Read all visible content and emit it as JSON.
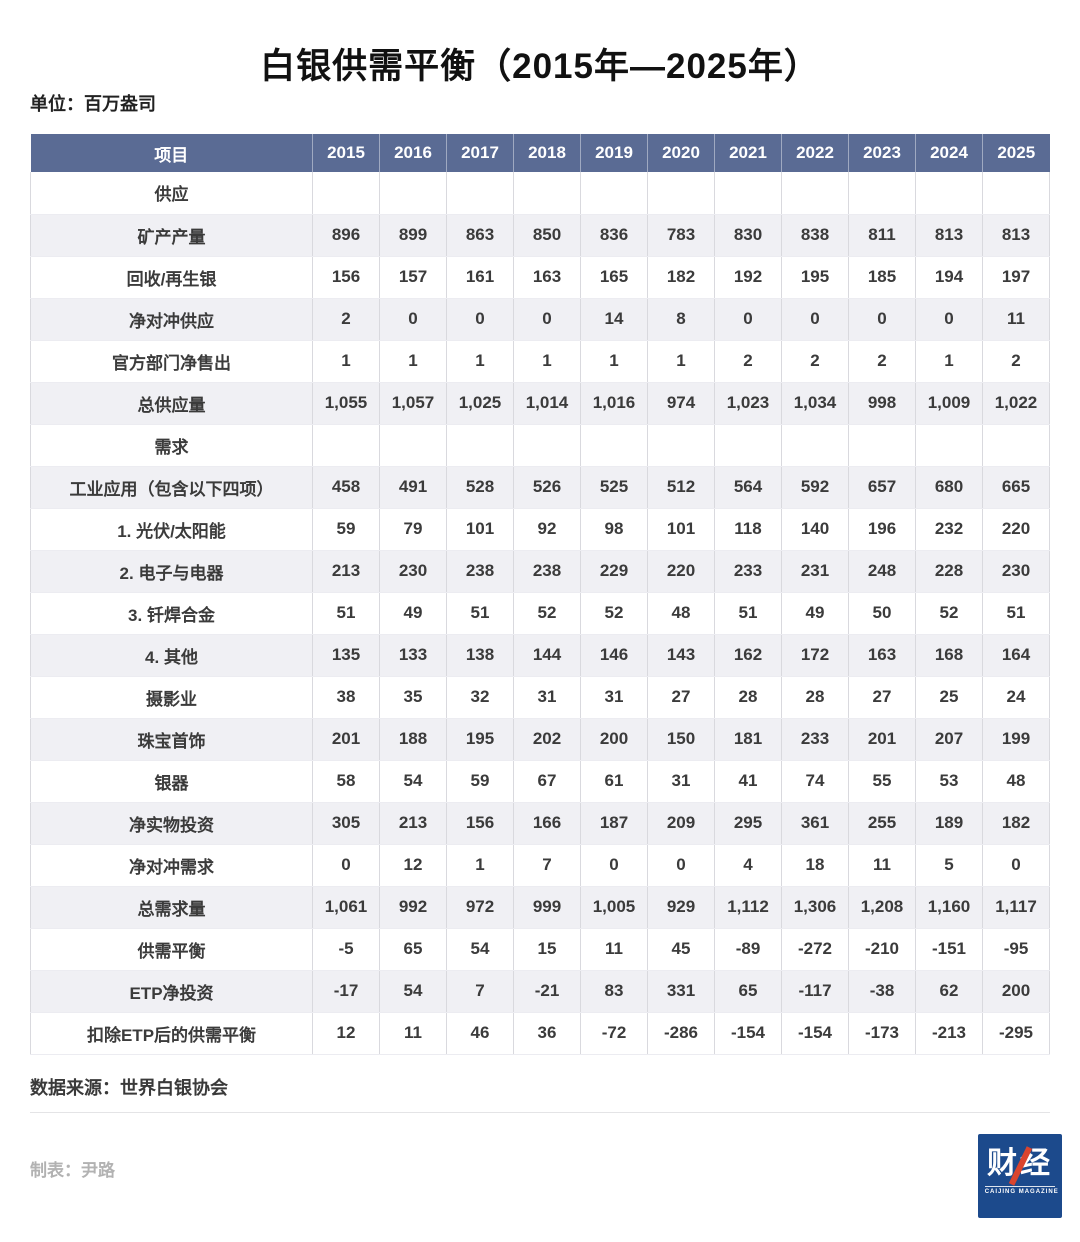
{
  "title": "白银供需平衡（2015年—2025年）",
  "unit_label": "单位：百万盎司",
  "chart_data": {
    "type": "table",
    "title": "白银供需平衡（2015年—2025年）",
    "unit": "百万盎司",
    "columns": [
      "项目",
      "2015",
      "2016",
      "2017",
      "2018",
      "2019",
      "2020",
      "2021",
      "2022",
      "2023",
      "2024",
      "2025"
    ],
    "rows": [
      {
        "label": "供应",
        "section": true,
        "values": [
          "",
          "",
          "",
          "",
          "",
          "",
          "",
          "",
          "",
          "",
          ""
        ]
      },
      {
        "label": "矿产产量",
        "section": false,
        "values": [
          "896",
          "899",
          "863",
          "850",
          "836",
          "783",
          "830",
          "838",
          "811",
          "813",
          "813"
        ]
      },
      {
        "label": "回收/再生银",
        "section": false,
        "values": [
          "156",
          "157",
          "161",
          "163",
          "165",
          "182",
          "192",
          "195",
          "185",
          "194",
          "197"
        ]
      },
      {
        "label": "净对冲供应",
        "section": false,
        "values": [
          "2",
          "0",
          "0",
          "0",
          "14",
          "8",
          "0",
          "0",
          "0",
          "0",
          "11"
        ]
      },
      {
        "label": "官方部门净售出",
        "section": false,
        "values": [
          "1",
          "1",
          "1",
          "1",
          "1",
          "1",
          "2",
          "2",
          "2",
          "1",
          "2"
        ]
      },
      {
        "label": "总供应量",
        "section": false,
        "values": [
          "1,055",
          "1,057",
          "1,025",
          "1,014",
          "1,016",
          "974",
          "1,023",
          "1,034",
          "998",
          "1,009",
          "1,022"
        ]
      },
      {
        "label": "需求",
        "section": true,
        "values": [
          "",
          "",
          "",
          "",
          "",
          "",
          "",
          "",
          "",
          "",
          ""
        ]
      },
      {
        "label": "工业应用（包含以下四项）",
        "section": false,
        "values": [
          "458",
          "491",
          "528",
          "526",
          "525",
          "512",
          "564",
          "592",
          "657",
          "680",
          "665"
        ]
      },
      {
        "label": "1. 光伏/太阳能",
        "section": false,
        "values": [
          "59",
          "79",
          "101",
          "92",
          "98",
          "101",
          "118",
          "140",
          "196",
          "232",
          "220"
        ]
      },
      {
        "label": "2. 电子与电器",
        "section": false,
        "values": [
          "213",
          "230",
          "238",
          "238",
          "229",
          "220",
          "233",
          "231",
          "248",
          "228",
          "230"
        ]
      },
      {
        "label": "3. 钎焊合金",
        "section": false,
        "values": [
          "51",
          "49",
          "51",
          "52",
          "52",
          "48",
          "51",
          "49",
          "50",
          "52",
          "51"
        ]
      },
      {
        "label": "4. 其他",
        "section": false,
        "values": [
          "135",
          "133",
          "138",
          "144",
          "146",
          "143",
          "162",
          "172",
          "163",
          "168",
          "164"
        ]
      },
      {
        "label": "摄影业",
        "section": false,
        "values": [
          "38",
          "35",
          "32",
          "31",
          "31",
          "27",
          "28",
          "28",
          "27",
          "25",
          "24"
        ]
      },
      {
        "label": "珠宝首饰",
        "section": false,
        "values": [
          "201",
          "188",
          "195",
          "202",
          "200",
          "150",
          "181",
          "233",
          "201",
          "207",
          "199"
        ]
      },
      {
        "label": "银器",
        "section": false,
        "values": [
          "58",
          "54",
          "59",
          "67",
          "61",
          "31",
          "41",
          "74",
          "55",
          "53",
          "48"
        ]
      },
      {
        "label": "净实物投资",
        "section": false,
        "values": [
          "305",
          "213",
          "156",
          "166",
          "187",
          "209",
          "295",
          "361",
          "255",
          "189",
          "182"
        ]
      },
      {
        "label": "净对冲需求",
        "section": false,
        "values": [
          "0",
          "12",
          "1",
          "7",
          "0",
          "0",
          "4",
          "18",
          "11",
          "5",
          "0"
        ]
      },
      {
        "label": "总需求量",
        "section": false,
        "values": [
          "1,061",
          "992",
          "972",
          "999",
          "1,005",
          "929",
          "1,112",
          "1,306",
          "1,208",
          "1,160",
          "1,117"
        ]
      },
      {
        "label": "供需平衡",
        "section": false,
        "values": [
          "-5",
          "65",
          "54",
          "15",
          "11",
          "45",
          "-89",
          "-272",
          "-210",
          "-151",
          "-95"
        ]
      },
      {
        "label": "ETP净投资",
        "section": false,
        "values": [
          "-17",
          "54",
          "7",
          "-21",
          "83",
          "331",
          "65",
          "-117",
          "-38",
          "62",
          "200"
        ]
      },
      {
        "label": "扣除ETP后的供需平衡",
        "section": false,
        "values": [
          "12",
          "11",
          "46",
          "36",
          "-72",
          "-286",
          "-154",
          "-154",
          "-173",
          "-213",
          "-295"
        ]
      }
    ]
  },
  "footer": {
    "source": "数据来源：世界白银协会",
    "credit": "制表：尹路"
  },
  "logo": {
    "text": "财经",
    "subtext": "CAIJING MAGAZINE"
  },
  "colors": {
    "header_bg": "#5a6b94",
    "stripe_bg": "#f0f0f4",
    "grid_line": "#d9d9de",
    "body_text": "#3b3b3b",
    "muted_text": "#b2b2b2",
    "logo_bg": "#1c4a8c",
    "logo_red": "#d9442e"
  }
}
